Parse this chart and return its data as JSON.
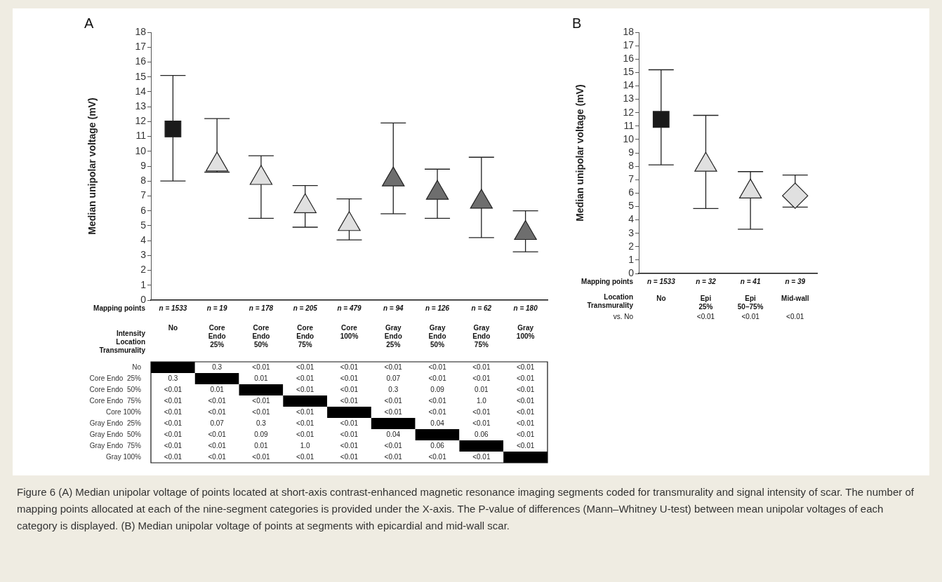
{
  "chart_data": [
    {
      "type": "scatter",
      "title": "A",
      "ylabel": "Median unipolar voltage (mV)",
      "categories": [
        "No",
        "Core Endo 25%",
        "Core Endo 50%",
        "Core Endo 75%",
        "Core 100%",
        "Gray Endo 25%",
        "Gray Endo 50%",
        "Gray Endo 75%",
        "Gray 100%"
      ],
      "ylim": [
        0,
        18
      ],
      "yticks": [
        0,
        1,
        2,
        3,
        4,
        5,
        6,
        7,
        8,
        9,
        10,
        11,
        12,
        13,
        14,
        15,
        16,
        17,
        18
      ],
      "grid": false,
      "legend": false,
      "tick_labels": "y",
      "series": [
        {
          "color": "#1a1a1a",
          "marker": "square",
          "x": [
            "No"
          ],
          "values": [
            11.5
          ],
          "errors": [
            [
              8.0,
              15.1
            ]
          ]
        },
        {
          "color": "#e0e0e0",
          "marker": "triangle",
          "x": [
            "Core Endo 25%",
            "Core Endo 50%",
            "Core Endo 75%",
            "Core 100%"
          ],
          "values": [
            9.1,
            8.2,
            6.3,
            5.1
          ],
          "errors": [
            [
              8.6,
              12.2
            ],
            [
              5.5,
              9.7
            ],
            [
              4.9,
              7.7
            ],
            [
              4.05,
              6.8
            ]
          ]
        },
        {
          "color": "#6e6e6e",
          "marker": "triangle",
          "x": [
            "Gray Endo 25%",
            "Gray Endo 50%",
            "Gray Endo 75%",
            "Gray 100%"
          ],
          "values": [
            8.1,
            7.2,
            6.6,
            4.5
          ],
          "errors": [
            [
              5.8,
              11.9
            ],
            [
              5.5,
              8.8
            ],
            [
              4.2,
              9.6
            ],
            [
              3.25,
              6.0
            ]
          ]
        }
      ],
      "annotations": [
        "Mapping points",
        "n = 1533",
        "n = 19",
        "n = 178",
        "n = 205",
        "n = 479",
        "n = 94",
        "n = 126",
        "n = 62",
        "n = 180"
      ]
    },
    {
      "type": "scatter",
      "title": "B",
      "ylabel": "Median unipolar voltage (mV)",
      "categories": [
        "No",
        "Epi 25%",
        "Epi 50–75%",
        "Mid-wall"
      ],
      "ylim": [
        0,
        18
      ],
      "yticks": [
        0,
        1,
        2,
        3,
        4,
        5,
        6,
        7,
        8,
        9,
        10,
        11,
        12,
        13,
        14,
        15,
        16,
        17,
        18
      ],
      "grid": false,
      "legend": false,
      "series": [
        {
          "color": "#1a1a1a",
          "marker": "square",
          "x": [
            "No"
          ],
          "values": [
            11.5
          ],
          "errors": [
            [
              8.1,
              15.2
            ]
          ]
        },
        {
          "color": "#e0e0e0",
          "marker": "triangle",
          "x": [
            "Epi 25%",
            "Epi 50–75%"
          ],
          "values": [
            8.1,
            6.1
          ],
          "errors": [
            [
              4.85,
              11.8
            ],
            [
              3.3,
              7.6
            ]
          ]
        },
        {
          "color": "#e0e0e0",
          "marker": "diamond",
          "x": [
            "Mid-wall"
          ],
          "values": [
            5.8
          ],
          "errors": [
            [
              4.95,
              7.35
            ]
          ]
        }
      ],
      "annotations": [
        "Mapping points",
        "n = 1533",
        "n = 32",
        "n = 41",
        "n = 39",
        "Location",
        "Transmurality",
        "vs. No",
        "<0.01",
        "<0.01",
        "<0.01"
      ]
    },
    {
      "type": "heatmap",
      "categories": [
        "No",
        "Core Endo 25%",
        "Core Endo 50%",
        "Core Endo 75%",
        "Core 100%",
        "Gray Endo 25%",
        "Gray Endo 50%",
        "Gray Endo 75%",
        "Gray 100%"
      ],
      "y_categories": [
        "No",
        "Core Endo  25%",
        "Core Endo  50%",
        "Core Endo  75%",
        "Core 100%",
        "Gray Endo  25%",
        "Gray Endo  50%",
        "Gray Endo  75%",
        "Gray 100%"
      ],
      "cells": [
        [
          null,
          0.3,
          null,
          null,
          null,
          null,
          null,
          null,
          null
        ],
        [
          0.3,
          null,
          0.01,
          null,
          null,
          0.07,
          null,
          null,
          null
        ],
        [
          null,
          0.01,
          null,
          null,
          null,
          0.3,
          0.09,
          0.01,
          null
        ],
        [
          null,
          null,
          null,
          null,
          null,
          null,
          null,
          1.0,
          null
        ],
        [
          null,
          null,
          null,
          null,
          null,
          null,
          null,
          null,
          null
        ],
        [
          null,
          0.07,
          0.3,
          null,
          null,
          null,
          0.04,
          null,
          null
        ],
        [
          null,
          null,
          0.09,
          null,
          null,
          0.04,
          null,
          0.06,
          null
        ],
        [
          null,
          null,
          0.01,
          1.0,
          null,
          null,
          0.06,
          null,
          null
        ],
        [
          null,
          null,
          null,
          null,
          null,
          null,
          null,
          null,
          null
        ]
      ],
      "cell_labels": [
        [
          null,
          "0.3",
          "<0.01",
          "<0.01",
          "<0.01",
          "<0.01",
          "<0.01",
          "<0.01",
          "<0.01"
        ],
        [
          "0.3",
          null,
          "0.01",
          "<0.01",
          "<0.01",
          "0.07",
          "<0.01",
          "<0.01",
          "<0.01"
        ],
        [
          "<0.01",
          "0.01",
          null,
          "<0.01",
          "<0.01",
          "0.3",
          "0.09",
          "0.01",
          "<0.01"
        ],
        [
          "<0.01",
          "<0.01",
          "<0.01",
          null,
          "<0.01",
          "<0.01",
          "<0.01",
          "1.0",
          "<0.01"
        ],
        [
          "<0.01",
          "<0.01",
          "<0.01",
          "<0.01",
          null,
          "<0.01",
          "<0.01",
          "<0.01",
          "<0.01"
        ],
        [
          "<0.01",
          "0.07",
          "0.3",
          "<0.01",
          "<0.01",
          null,
          "0.04",
          "<0.01",
          "<0.01"
        ],
        [
          "<0.01",
          "<0.01",
          "0.09",
          "<0.01",
          "<0.01",
          "0.04",
          null,
          "0.06",
          "<0.01"
        ],
        [
          "<0.01",
          "<0.01",
          "0.01",
          "1.0",
          "<0.01",
          "<0.01",
          "0.06",
          null,
          "<0.01"
        ],
        [
          "<0.01",
          "<0.01",
          "<0.01",
          "<0.01",
          "<0.01",
          "<0.01",
          "<0.01",
          "<0.01",
          null
        ]
      ],
      "annotations": [
        "Intensity",
        "Location",
        "Transmurality",
        "Figure 6 (A) Median unipolar voltage of points located at short-axis contrast-enhanced magnetic resonance imaging segments coded for transmurality and signal intensity of scar. The number of mapping points allocated at each of the nine-segment categories is provided under the X-axis. The P-value of differences (Mann–Whitney U-test) between mean unipolar voltages of each category is displayed. (B) Median unipolar voltage of points at segments with epicardial and mid-wall scar."
      ]
    }
  ]
}
